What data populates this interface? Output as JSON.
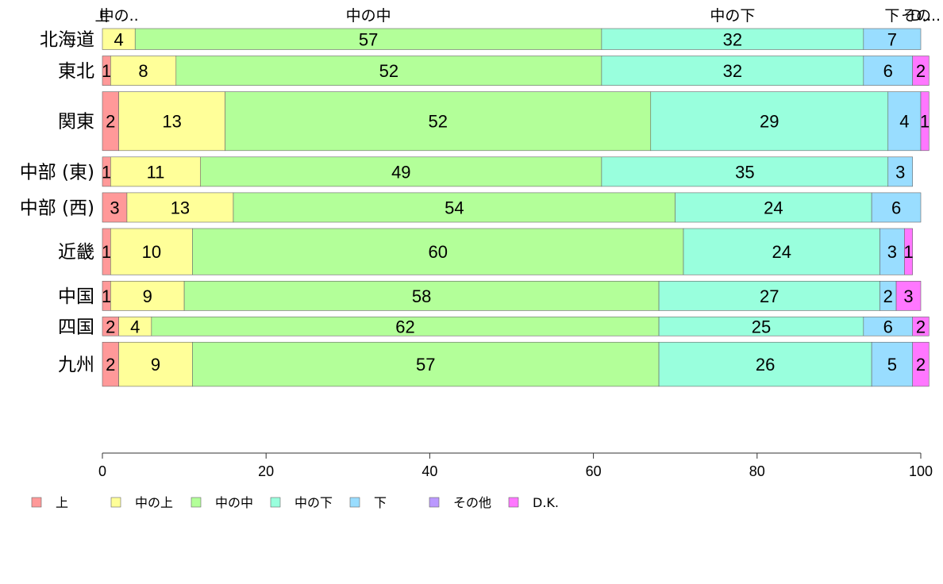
{
  "chart_data": {
    "type": "bar",
    "orientation": "horizontal",
    "stacked": true,
    "xlim": [
      0,
      100
    ],
    "x_ticks": [
      0,
      20,
      40,
      60,
      80,
      100
    ],
    "categories": [
      "北海道",
      "東北",
      "関東",
      "中部 (東)",
      "中部 (西)",
      "近畿",
      "中国",
      "四国",
      "九州"
    ],
    "bar_weights": [
      0.5,
      0.7,
      1.4,
      0.7,
      0.7,
      1.1,
      0.7,
      0.45,
      1.05
    ],
    "series": [
      {
        "name": "上",
        "color": "#ff9999",
        "values": [
          0,
          1,
          2,
          1,
          3,
          1,
          1,
          2,
          2
        ]
      },
      {
        "name": "中の上",
        "color": "#ffff99",
        "values": [
          4,
          8,
          13,
          11,
          13,
          10,
          9,
          4,
          9
        ]
      },
      {
        "name": "中の中",
        "color": "#b3ff99",
        "values": [
          57,
          52,
          52,
          49,
          54,
          60,
          58,
          62,
          57
        ]
      },
      {
        "name": "中の下",
        "color": "#99ffdd",
        "values": [
          32,
          32,
          29,
          35,
          24,
          24,
          27,
          25,
          26
        ]
      },
      {
        "name": "下",
        "color": "#99ddff",
        "values": [
          7,
          6,
          4,
          3,
          6,
          3,
          2,
          6,
          5
        ]
      },
      {
        "name": "その他",
        "color": "#bb99ff",
        "values": [
          0,
          0,
          0,
          0,
          0,
          0,
          0,
          0,
          0
        ]
      },
      {
        "name": "D.K.",
        "color": "#ff77ff",
        "values": [
          0,
          2,
          1,
          0,
          0,
          1,
          3,
          2,
          2
        ]
      }
    ],
    "top_labels": [
      "上",
      "中の..",
      "中の中",
      "中の下",
      "下",
      "その..",
      "D.."
    ],
    "legend_position": "bottom-left"
  }
}
